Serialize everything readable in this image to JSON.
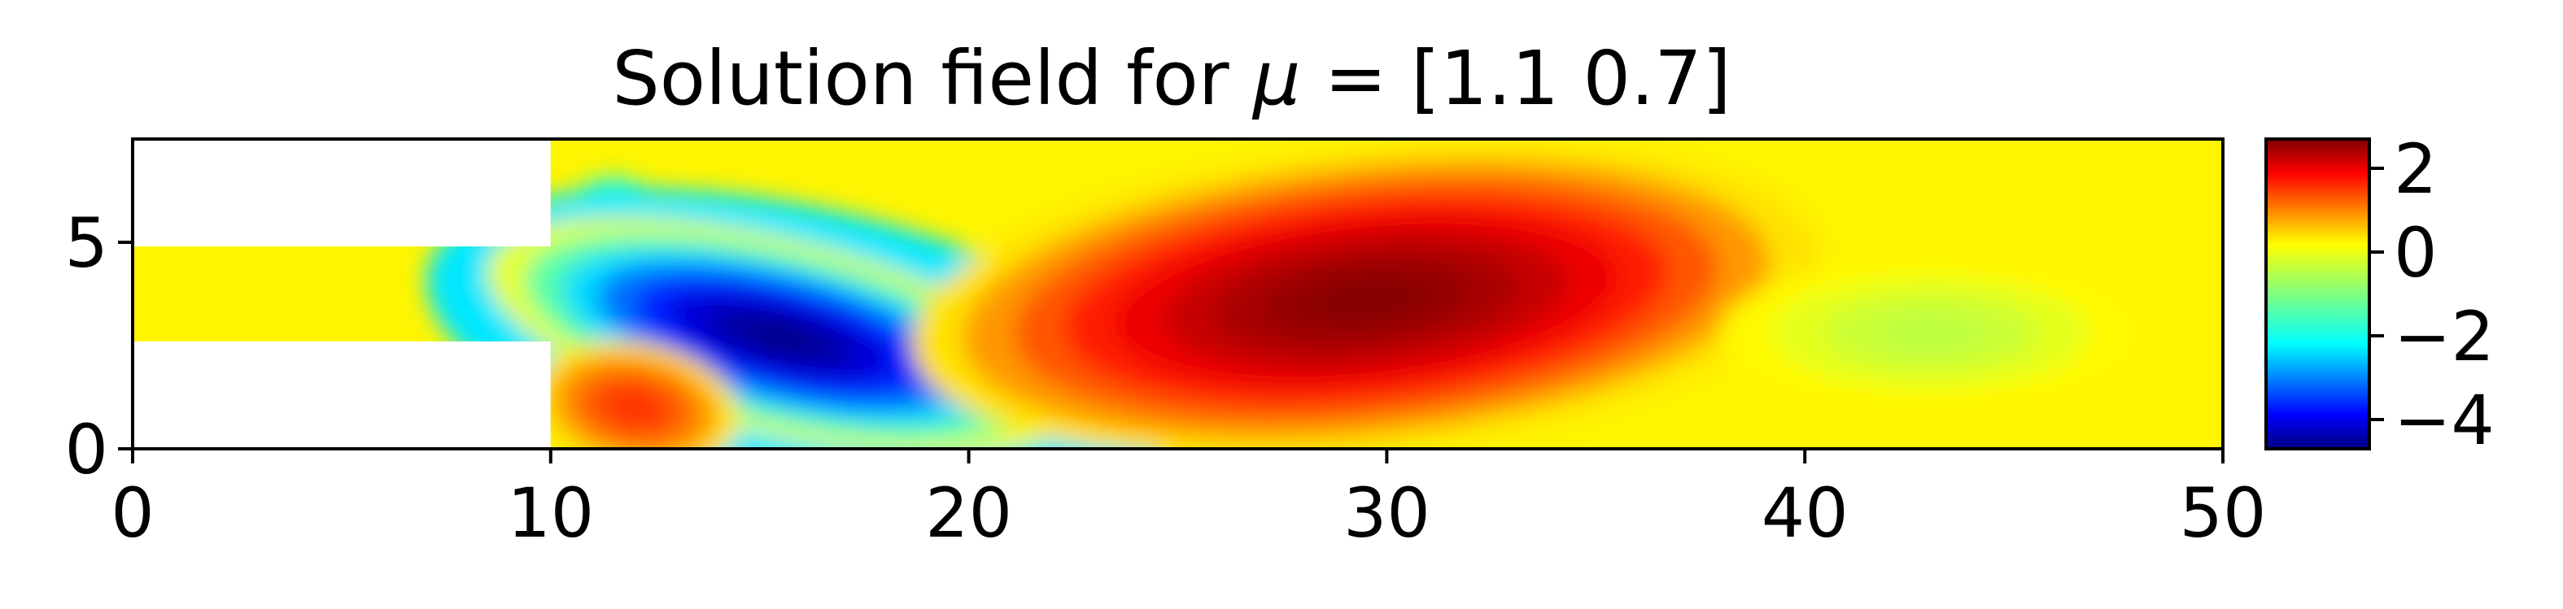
{
  "chart_data": {
    "type": "heatmap",
    "title": "Solution field for μ = [1.1 0.7]",
    "title_prefix": "Solution field for ",
    "title_symbol": "μ",
    "title_suffix": " = [1.1 0.7]",
    "xlabel": "",
    "ylabel": "",
    "xlim": [
      0,
      50
    ],
    "ylim": [
      0,
      7.5
    ],
    "x_ticks": [
      0,
      10,
      20,
      30,
      40,
      50
    ],
    "x_tick_labels": [
      "0",
      "10",
      "20",
      "30",
      "40",
      "50"
    ],
    "y_ticks": [
      0,
      5
    ],
    "y_tick_labels": [
      "0",
      "5"
    ],
    "grid": false,
    "colormap": "jet",
    "color_range": [
      -4.7,
      2.7
    ],
    "colorbar_ticks": [
      2,
      0,
      -2,
      -4
    ],
    "colorbar_tick_labels": [
      "2",
      "0",
      "−2",
      "−4"
    ],
    "domain": {
      "inlet_channel": {
        "x": [
          0,
          10
        ],
        "y": [
          2.6,
          4.9
        ]
      },
      "main_channel": {
        "x": [
          10,
          50
        ],
        "y": [
          0,
          7.5
        ]
      }
    },
    "field_features": [
      {
        "x": 15.5,
        "y": 2.7,
        "value": -4.7,
        "note": "minimum"
      },
      {
        "x": 29.5,
        "y": 3.6,
        "value": 2.7,
        "note": "maximum"
      },
      {
        "x": 12.0,
        "y": 1.0,
        "value": 1.5,
        "note": "corner"
      },
      {
        "x": 43.0,
        "y": 2.8,
        "value": -0.6,
        "note": "weak"
      }
    ],
    "background_value": 0
  }
}
